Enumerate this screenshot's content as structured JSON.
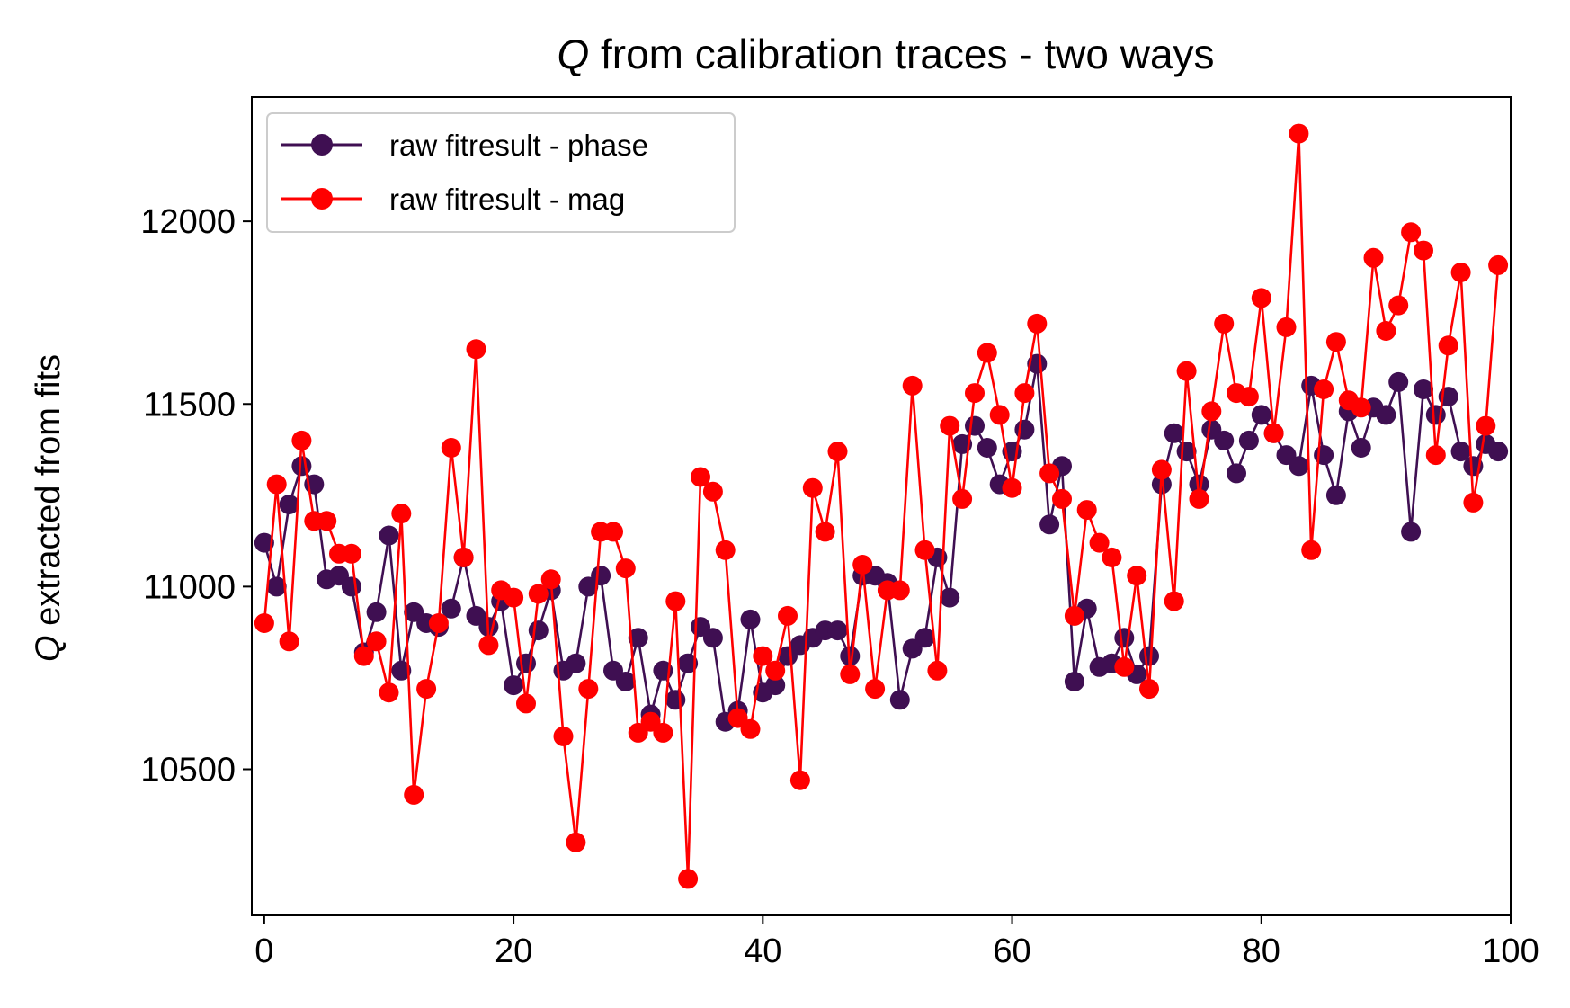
{
  "chart_data": {
    "type": "line",
    "title_italic": "Q",
    "title_rest": " from calibration traces - two ways",
    "ylabel_italic": "Q",
    "ylabel_rest": " extracted from fits",
    "xlabel": "",
    "xlim": [
      -1,
      100
    ],
    "ylim": [
      10100,
      12340
    ],
    "xticks": [
      0,
      20,
      40,
      60,
      80,
      100
    ],
    "yticks": [
      10500,
      11000,
      11500,
      12000
    ],
    "grid": false,
    "legend_position": "upper-left",
    "x": [
      0,
      1,
      2,
      3,
      4,
      5,
      6,
      7,
      8,
      9,
      10,
      11,
      12,
      13,
      14,
      15,
      16,
      17,
      18,
      19,
      20,
      21,
      22,
      23,
      24,
      25,
      26,
      27,
      28,
      29,
      30,
      31,
      32,
      33,
      34,
      35,
      36,
      37,
      38,
      39,
      40,
      41,
      42,
      43,
      44,
      45,
      46,
      47,
      48,
      49,
      50,
      51,
      52,
      53,
      54,
      55,
      56,
      57,
      58,
      59,
      60,
      61,
      62,
      63,
      64,
      65,
      66,
      67,
      68,
      69,
      70,
      71,
      72,
      73,
      74,
      75,
      76,
      77,
      78,
      79,
      80,
      81,
      82,
      83,
      84,
      85,
      86,
      87,
      88,
      89,
      90,
      91,
      92,
      93,
      94,
      95,
      96,
      97,
      98,
      99
    ],
    "series": [
      {
        "name": "raw fitresult - phase",
        "color": "#3f0f52",
        "values": [
          11120,
          11000,
          11225,
          11330,
          11280,
          11020,
          11030,
          11000,
          10820,
          10930,
          11140,
          10770,
          10930,
          10900,
          10890,
          10940,
          11080,
          10920,
          10890,
          10960,
          10730,
          10790,
          10880,
          10990,
          10770,
          10790,
          11000,
          11030,
          10770,
          10740,
          10860,
          10650,
          10770,
          10690,
          10790,
          10890,
          10860,
          10630,
          10660,
          10910,
          10710,
          10730,
          10810,
          10840,
          10860,
          10880,
          10880,
          10810,
          11030,
          11030,
          11010,
          10690,
          10830,
          10860,
          11080,
          10970,
          11390,
          11440,
          11380,
          11280,
          11370,
          11430,
          11610,
          11170,
          11330,
          10740,
          10940,
          10780,
          10790,
          10860,
          10760,
          10810,
          11280,
          11420,
          11370,
          11280,
          11430,
          11400,
          11310,
          11400,
          11470,
          11420,
          11360,
          11330,
          11550,
          11360,
          11250,
          11480,
          11380,
          11490,
          11470,
          11560,
          11150,
          11540,
          11470,
          11520,
          11370,
          11330,
          11390,
          11370
        ]
      },
      {
        "name": "raw fitresult - mag",
        "color": "#ff0000",
        "values": [
          10900,
          11280,
          10850,
          11400,
          11180,
          11180,
          11090,
          11090,
          10810,
          10850,
          10710,
          11200,
          10430,
          10720,
          10900,
          11380,
          11080,
          11650,
          10840,
          10990,
          10970,
          10680,
          10980,
          11020,
          10590,
          10300,
          10720,
          11150,
          11150,
          11050,
          10600,
          10630,
          10600,
          10960,
          10200,
          11300,
          11260,
          11100,
          10640,
          10610,
          10810,
          10770,
          10920,
          10470,
          11270,
          11150,
          11370,
          10760,
          11060,
          10720,
          10990,
          10990,
          11550,
          11100,
          10770,
          11440,
          11240,
          11530,
          11640,
          11470,
          11270,
          11530,
          11720,
          11310,
          11240,
          10920,
          11210,
          11120,
          11080,
          10780,
          11030,
          10720,
          11320,
          10960,
          11590,
          11240,
          11480,
          11720,
          11530,
          11520,
          11790,
          11420,
          11710,
          12240,
          11100,
          11540,
          11670,
          11510,
          11490,
          11900,
          11700,
          11770,
          11970,
          11920,
          11360,
          11660,
          11860,
          11230,
          11440,
          11880
        ]
      }
    ]
  }
}
